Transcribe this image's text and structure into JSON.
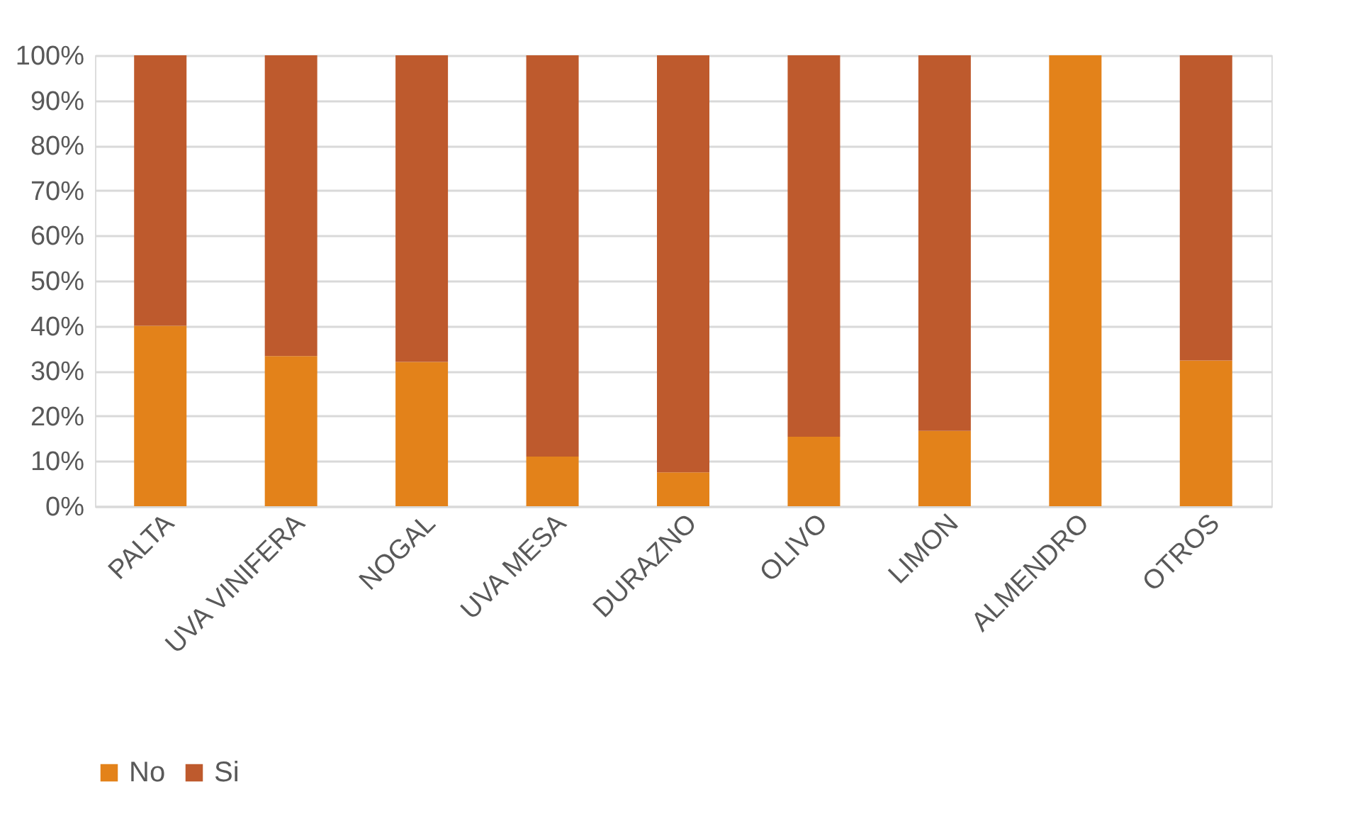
{
  "chart_data": {
    "type": "bar",
    "stacked": true,
    "categories": [
      "PALTA",
      "UVA VINIFERA",
      "NOGAL",
      "UVA MESA",
      "DURAZNO",
      "OLIVO",
      "LIMON",
      "ALMENDRO",
      "OTROS"
    ],
    "series": [
      {
        "name": "No",
        "color": "#e3821a",
        "values": [
          40,
          33.3,
          32,
          11,
          7.5,
          15.4,
          16.7,
          100,
          32.3
        ]
      },
      {
        "name": "Si",
        "color": "#be5a2d",
        "values": [
          60,
          66.7,
          68,
          89,
          92.5,
          84.6,
          83.3,
          0,
          67.7
        ]
      }
    ],
    "ylim": [
      0,
      100
    ],
    "yticks": [
      {
        "value": 0,
        "label": "0%"
      },
      {
        "value": 10,
        "label": "10%"
      },
      {
        "value": 20,
        "label": "20%"
      },
      {
        "value": 30,
        "label": "30%"
      },
      {
        "value": 40,
        "label": "40%"
      },
      {
        "value": 50,
        "label": "50%"
      },
      {
        "value": 60,
        "label": "60%"
      },
      {
        "value": 70,
        "label": "70%"
      },
      {
        "value": 80,
        "label": "80%"
      },
      {
        "value": 90,
        "label": "90%"
      },
      {
        "value": 100,
        "label": "100%"
      }
    ],
    "grid": "y",
    "legend": "bottom"
  }
}
